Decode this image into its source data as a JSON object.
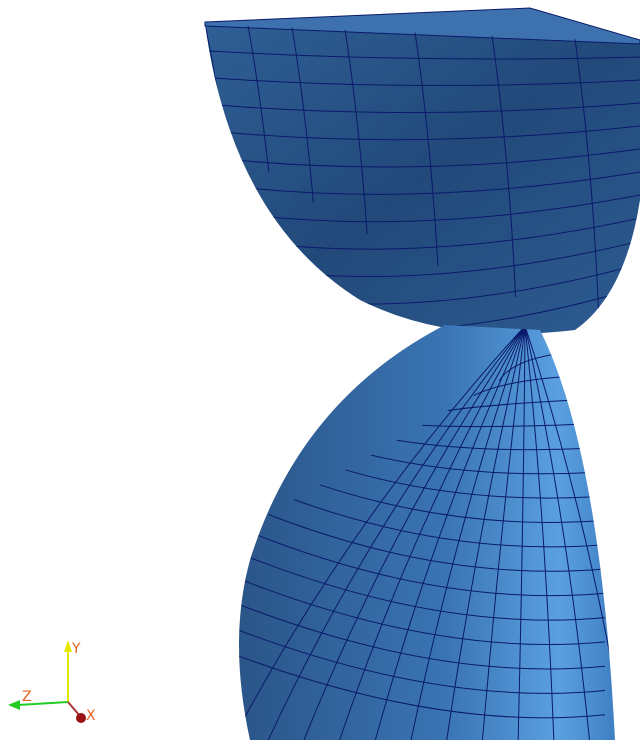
{
  "axes": {
    "y": "Y",
    "z": "Z",
    "x": "X"
  }
}
